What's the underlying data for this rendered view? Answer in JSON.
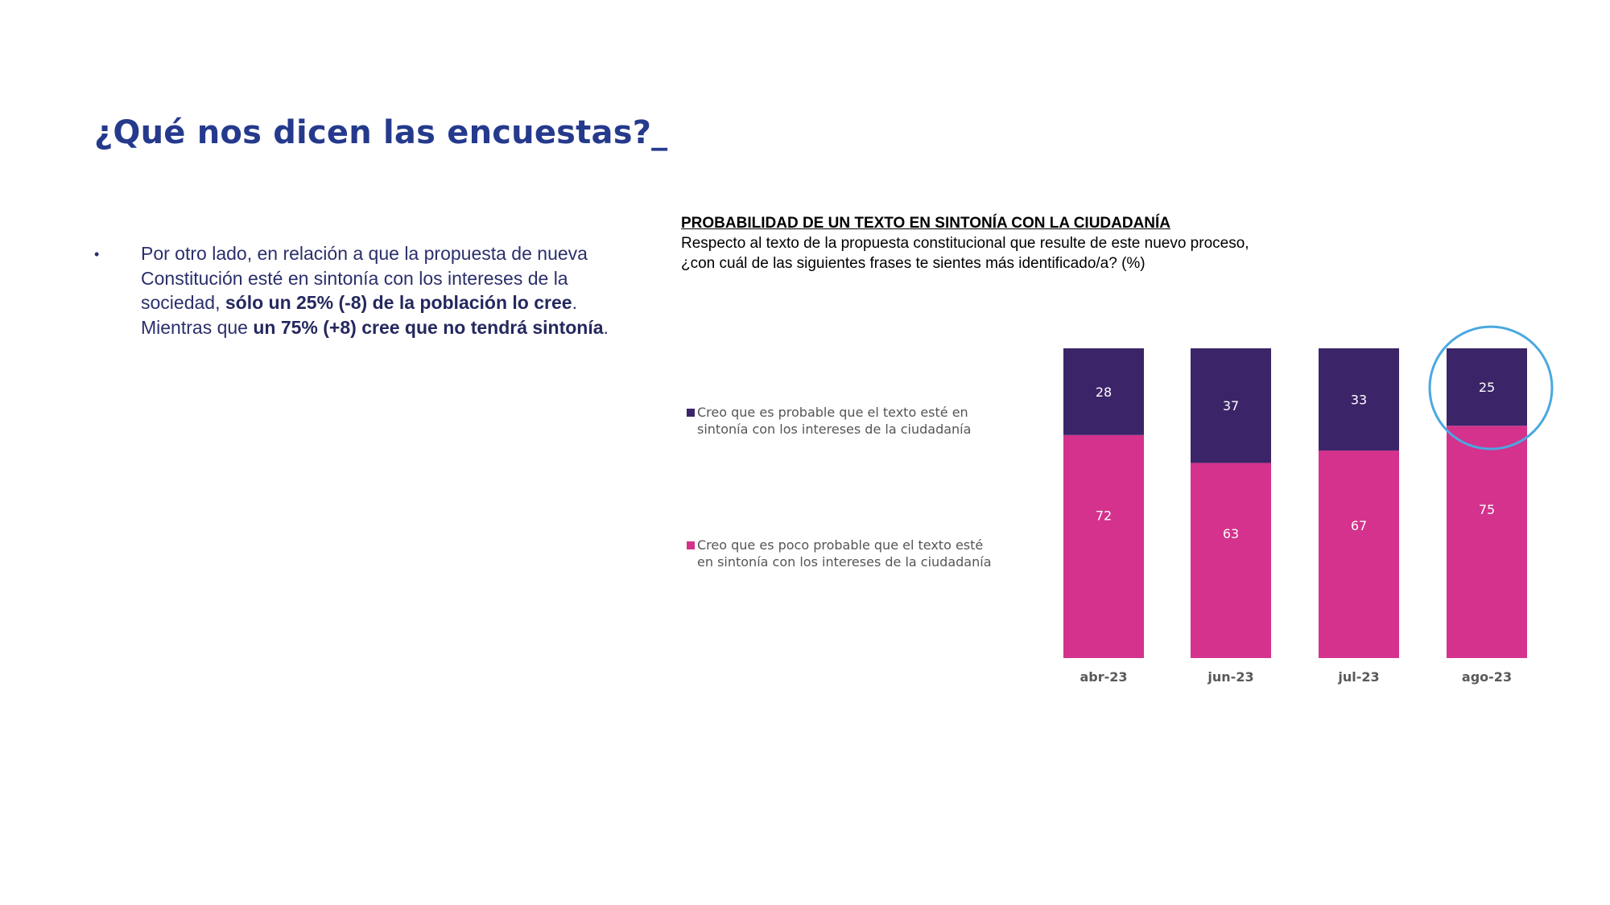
{
  "page": {
    "title": "¿Qué nos dicen las encuestas?_"
  },
  "bullet": {
    "text_1": "Por otro lado, en relación a que la propuesta de nueva Constitución esté en sintonía con los intereses de la sociedad, ",
    "bold_1": "sólo un 25% (-8) de la población lo cree",
    "text_2": ". Mientras que ",
    "bold_2": "un 75% (+8) cree que no tendrá sintonía",
    "text_3": "."
  },
  "chart_data": {
    "type": "bar",
    "stacked": true,
    "title": "PROBABILIDAD DE UN TEXTO EN SINTONÍA CON LA CIUDADANÍA",
    "subtitle": "Respecto al texto de la propuesta constitucional que resulte de este nuevo proceso, ¿con cuál de las siguientes frases te sientes más identificado/a? (%)",
    "categories": [
      "abr-23",
      "jun-23",
      "jul-23",
      "ago-23"
    ],
    "series": [
      {
        "name": "Creo que es probable que el texto esté en sintonía con los intereses de la ciudadanía",
        "values": [
          28,
          37,
          33,
          25
        ],
        "color": "#3b2568"
      },
      {
        "name": "Creo que es poco probable que el texto esté en sintonía con los intereses de la ciudadanía",
        "values": [
          72,
          63,
          67,
          75
        ],
        "color": "#d4328c"
      }
    ],
    "ylim": [
      0,
      100
    ],
    "grid": false,
    "legend_position": "left",
    "highlight": {
      "category": "ago-23",
      "series": 0,
      "color": "#4aa8e0"
    }
  }
}
